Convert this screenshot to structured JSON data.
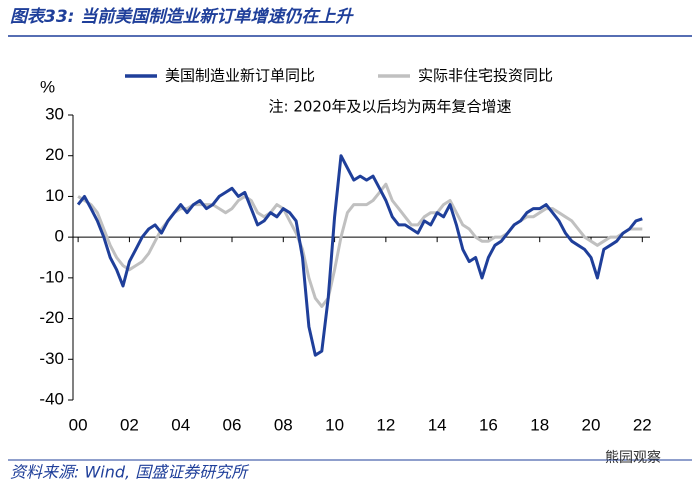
{
  "header": {
    "title": "图表33:  当前美国制造业新订单增速仍在上升"
  },
  "footer": {
    "source": "资料来源:  Wind, 国盛证券研究所",
    "watermark": "熊园观察"
  },
  "chart_data": {
    "type": "line",
    "y_label": "%",
    "annotation": "注:  2020年及以后均为两年复合增速",
    "x": [
      2000,
      2000.25,
      2000.5,
      2000.75,
      2001,
      2001.25,
      2001.5,
      2001.75,
      2002,
      2002.25,
      2002.5,
      2002.75,
      2003,
      2003.25,
      2003.5,
      2003.75,
      2004,
      2004.25,
      2004.5,
      2004.75,
      2005,
      2005.25,
      2005.5,
      2005.75,
      2006,
      2006.25,
      2006.5,
      2006.75,
      2007,
      2007.25,
      2007.5,
      2007.75,
      2008,
      2008.25,
      2008.5,
      2008.75,
      2009,
      2009.25,
      2009.5,
      2009.75,
      2010,
      2010.25,
      2010.5,
      2010.75,
      2011,
      2011.25,
      2011.5,
      2011.75,
      2012,
      2012.25,
      2012.5,
      2012.75,
      2013,
      2013.25,
      2013.5,
      2013.75,
      2014,
      2014.25,
      2014.5,
      2014.75,
      2015,
      2015.25,
      2015.5,
      2015.75,
      2016,
      2016.25,
      2016.5,
      2016.75,
      2017,
      2017.25,
      2017.5,
      2017.75,
      2018,
      2018.25,
      2018.5,
      2018.75,
      2019,
      2019.25,
      2019.5,
      2019.75,
      2020,
      2020.25,
      2020.5,
      2020.75,
      2021,
      2021.25,
      2021.5,
      2021.75,
      2022
    ],
    "series": [
      {
        "name": "美国制造业新订单同比",
        "color": "#1f3f9a",
        "values": [
          8,
          10,
          7,
          4,
          0,
          -5,
          -8,
          -12,
          -6,
          -3,
          0,
          2,
          3,
          1,
          4,
          6,
          8,
          6,
          8,
          9,
          7,
          8,
          10,
          11,
          12,
          10,
          11,
          7,
          3,
          4,
          6,
          5,
          7,
          6,
          4,
          -5,
          -22,
          -29,
          -28,
          -15,
          5,
          20,
          17,
          14,
          15,
          14,
          15,
          12,
          9,
          5,
          3,
          3,
          2,
          1,
          4,
          3,
          6,
          5,
          8,
          3,
          -3,
          -6,
          -5,
          -10,
          -5,
          -2,
          -1,
          1,
          3,
          4,
          6,
          7,
          7,
          8,
          6,
          4,
          1,
          -1,
          -2,
          -3,
          -5,
          -10,
          -3,
          -2,
          -1,
          1,
          2,
          4,
          4.5
        ]
      },
      {
        "name": "实际非住宅投资同比",
        "color": "#c0c0c0",
        "values": [
          10,
          9,
          8,
          6,
          2,
          -2,
          -5,
          -7,
          -8,
          -7,
          -6,
          -4,
          -1,
          2,
          4,
          6,
          7,
          7,
          8,
          8,
          8,
          8,
          7,
          6,
          7,
          9,
          10,
          9,
          6,
          5,
          6,
          8,
          7,
          4,
          1,
          -3,
          -10,
          -15,
          -17,
          -15,
          -8,
          0,
          6,
          8,
          8,
          8,
          9,
          11,
          13,
          9,
          7,
          5,
          3,
          3,
          5,
          6,
          6,
          8,
          9,
          6,
          3,
          2,
          0,
          -1,
          -1,
          0,
          0,
          1,
          3,
          4,
          5,
          5,
          6,
          7,
          7,
          6,
          5,
          4,
          2,
          0,
          -1,
          -2,
          -1,
          0,
          0,
          1,
          2,
          2,
          2
        ]
      }
    ],
    "xlim": [
      1999.8,
      2022.3
    ],
    "xticks": [
      {
        "value": 2000,
        "label": "00"
      },
      {
        "value": 2002,
        "label": "02"
      },
      {
        "value": 2004,
        "label": "04"
      },
      {
        "value": 2006,
        "label": "06"
      },
      {
        "value": 2008,
        "label": "08"
      },
      {
        "value": 2010,
        "label": "10"
      },
      {
        "value": 2012,
        "label": "12"
      },
      {
        "value": 2014,
        "label": "14"
      },
      {
        "value": 2016,
        "label": "16"
      },
      {
        "value": 2018,
        "label": "18"
      },
      {
        "value": 2020,
        "label": "20"
      },
      {
        "value": 2022,
        "label": "22"
      }
    ],
    "ylim": [
      -40,
      30
    ],
    "yticks": [
      -40,
      -30,
      -20,
      -10,
      0,
      10,
      20,
      30
    ]
  }
}
